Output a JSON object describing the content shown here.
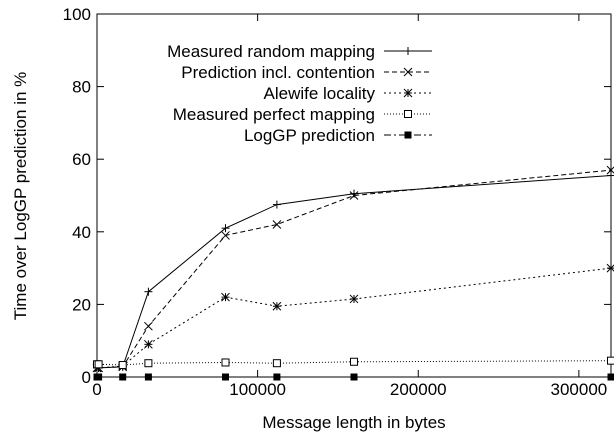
{
  "chart_data": {
    "type": "line",
    "xlabel": "Message length in bytes",
    "ylabel": "Time over LogGP prediction in %",
    "xlim": [
      0,
      320000
    ],
    "ylim": [
      0,
      100
    ],
    "xticks": [
      0,
      100000,
      200000,
      300000
    ],
    "xtick_labels": [
      "0",
      "100000",
      "200000",
      "300000"
    ],
    "yticks": [
      0,
      20,
      40,
      60,
      80,
      100
    ],
    "ytick_labels": [
      "0",
      "20",
      "40",
      "60",
      "80",
      "100"
    ],
    "grid": false,
    "legend_position": "top-left",
    "series": [
      {
        "name": "Measured random mapping",
        "marker": "plus",
        "dash": "solid",
        "x": [
          0,
          1000,
          16000,
          32000,
          80000,
          112000,
          160000,
          320000
        ],
        "y": [
          2.5,
          2.5,
          2.8,
          23.5,
          41.0,
          47.5,
          50.5,
          55.5
        ]
      },
      {
        "name": "Prediction incl. contention",
        "marker": "cross",
        "dash": "dashed",
        "x": [
          0,
          1000,
          16000,
          32000,
          80000,
          112000,
          160000,
          320000
        ],
        "y": [
          2.5,
          2.5,
          2.8,
          14.0,
          39.0,
          42.0,
          50.0,
          57.0
        ]
      },
      {
        "name": "Alewife locality",
        "marker": "star",
        "dash": "dotted",
        "x": [
          0,
          1000,
          16000,
          32000,
          80000,
          112000,
          160000,
          320000
        ],
        "y": [
          2.5,
          2.5,
          3.0,
          9.0,
          22.0,
          19.5,
          21.5,
          30.0
        ]
      },
      {
        "name": "Measured perfect mapping",
        "marker": "open-square",
        "dash": "fine-dotted",
        "x": [
          0,
          1000,
          16000,
          32000,
          80000,
          112000,
          160000,
          320000
        ],
        "y": [
          3.5,
          3.5,
          3.3,
          3.8,
          4.0,
          3.8,
          4.2,
          4.5
        ]
      },
      {
        "name": "LogGP prediction",
        "marker": "filled-square",
        "dash": "dash-dot",
        "x": [
          0,
          1000,
          16000,
          32000,
          80000,
          112000,
          160000,
          320000
        ],
        "y": [
          0,
          0,
          0,
          0,
          0,
          0,
          0,
          0
        ]
      }
    ]
  }
}
